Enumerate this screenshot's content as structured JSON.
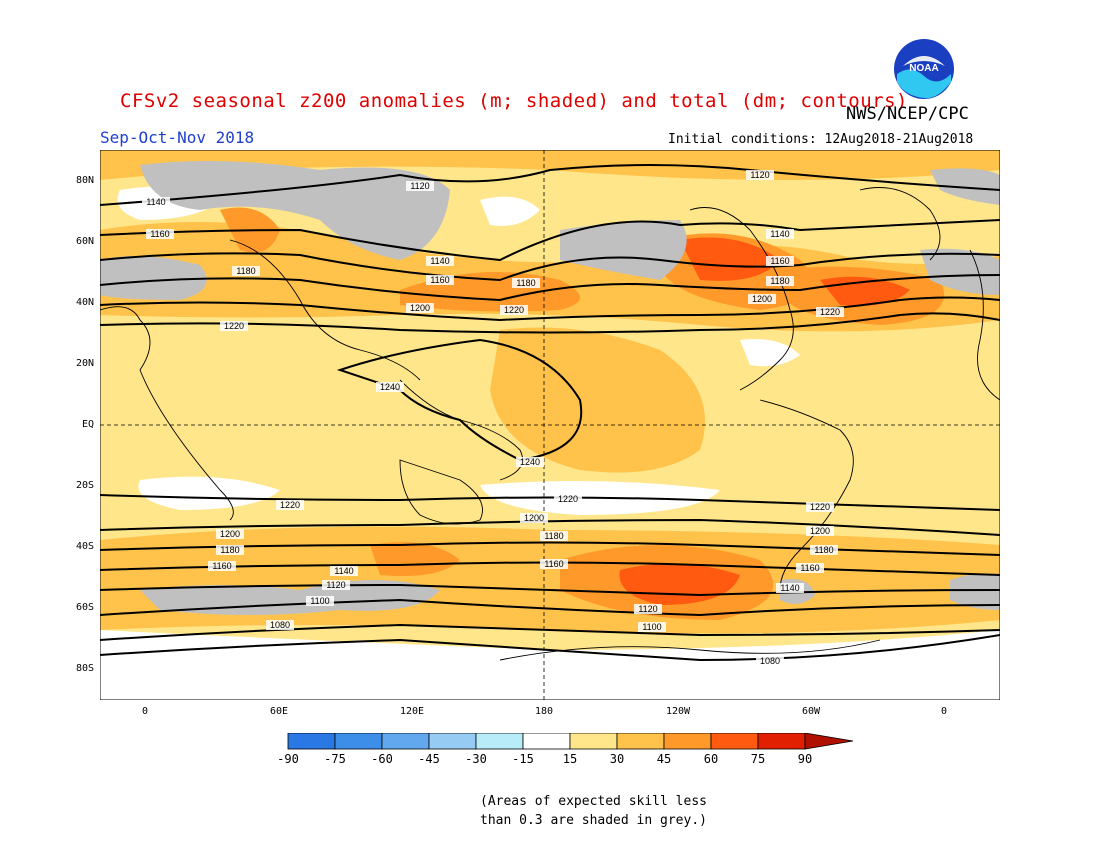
{
  "title": "CFSv2 seasonal z200 anomalies (m; shaded) and total (dm; contours)",
  "season": "Sep-Oct-Nov 2018",
  "agency": "NWS/NCEP/CPC",
  "initial_conditions": "Initial conditions: 12Aug2018-21Aug2018",
  "logo_text": "NOAA",
  "lat_labels": [
    "80N",
    "60N",
    "40N",
    "20N",
    "EQ",
    "20S",
    "40S",
    "60S",
    "80S"
  ],
  "lon_labels": [
    "0",
    "60E",
    "120E",
    "180",
    "120W",
    "60W",
    "0"
  ],
  "colorbar": {
    "labels": [
      "-90",
      "-75",
      "-60",
      "-45",
      "-30",
      "-15",
      "15",
      "30",
      "45",
      "60",
      "75",
      "90"
    ],
    "colors": [
      "#1a5fd8",
      "#2a78e4",
      "#3c8ee8",
      "#62a8ee",
      "#96ccf4",
      "#b8ecf8",
      "#ffffff",
      "#ffe68a",
      "#ffc24a",
      "#ff9a2a",
      "#ff5a10",
      "#e02000",
      "#b01000"
    ]
  },
  "contour_labels": [
    "1120",
    "1120",
    "1140",
    "1140",
    "1140",
    "1160",
    "1160",
    "1160",
    "1180",
    "1180",
    "1180",
    "1200",
    "1200",
    "1220",
    "1220",
    "1220",
    "1240",
    "1240",
    "1220",
    "1220",
    "1220",
    "1200",
    "1200",
    "1200",
    "1180",
    "1180",
    "1180",
    "1160",
    "1160",
    "1160",
    "1140",
    "1140",
    "1120",
    "1120",
    "1100",
    "1100",
    "1080",
    "1080"
  ],
  "note_line1": "(Areas of expected skill less",
  "note_line2": "than 0.3 are shaded in grey.)",
  "colors": {
    "title": "#e00000",
    "season": "#2040d0",
    "grey_skill": "#c0c0c0",
    "light_yellow": "#ffe68a",
    "orange": "#ffc24a",
    "dark_orange": "#ff9a2a",
    "red_orange": "#ff5a10"
  }
}
